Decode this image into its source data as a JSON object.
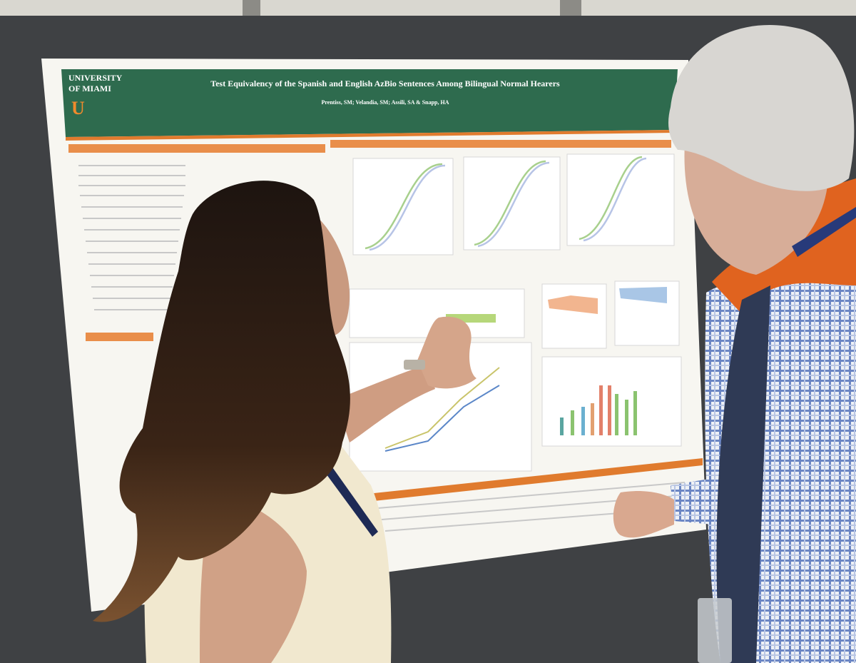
{
  "poster": {
    "logo": {
      "line1": "UNIVERSITY",
      "line2": "OF MIAMI"
    },
    "title": "Test Equivalency of the Spanish and English AzBio Sentences Among Bilingual Normal Hearers",
    "authors": "Prentiss, SM; Velandia, SM; Assili, SA & Snapp, HA"
  }
}
